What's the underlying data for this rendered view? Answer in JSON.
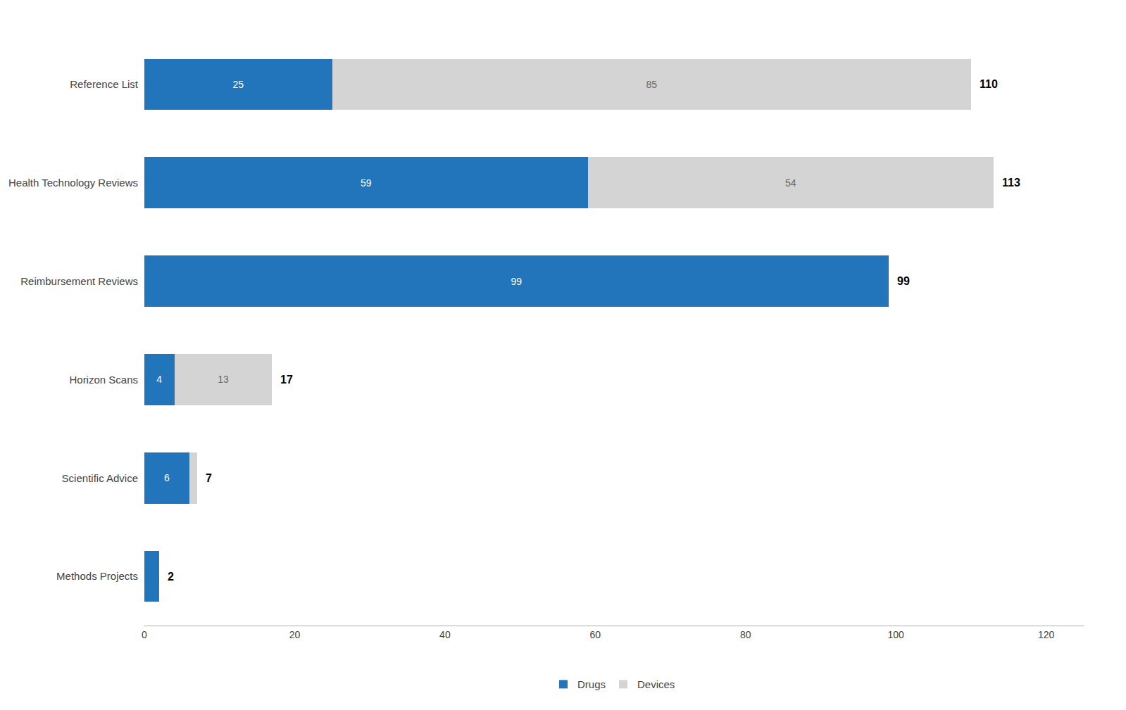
{
  "chart_data": {
    "type": "bar",
    "orientation": "horizontal",
    "stacked": true,
    "categories": [
      "Methods Projects",
      "Scientific Advice",
      "Horizon Scans",
      "Reimbursement Reviews",
      "Health Technology Reviews",
      "Reference List"
    ],
    "series": [
      {
        "name": "Drugs",
        "color": "#2275bb",
        "values": [
          2,
          6,
          4,
          99,
          59,
          25
        ],
        "value_labels": [
          null,
          "6",
          "4",
          "99",
          "59",
          "25"
        ]
      },
      {
        "name": "Devices",
        "color": "#d4d4d4",
        "values": [
          0,
          1,
          13,
          0,
          54,
          85
        ],
        "value_labels": [
          null,
          null,
          "13",
          null,
          "54",
          "85"
        ]
      }
    ],
    "totals": [
      2,
      7,
      17,
      99,
      113,
      110
    ],
    "xlim": [
      0,
      125
    ],
    "xticks": [
      0,
      20,
      40,
      60,
      80,
      100,
      120
    ],
    "grid": false,
    "legend": "bottom",
    "data_labels": true
  }
}
